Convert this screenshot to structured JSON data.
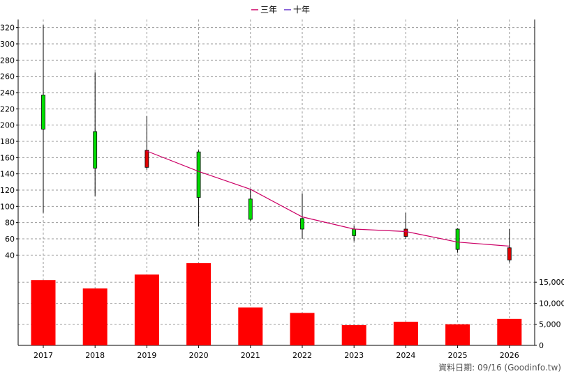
{
  "chart_data": {
    "type": "candlestick+line+bar",
    "x": [
      "2017",
      "2018",
      "2019",
      "2020",
      "2021",
      "2022",
      "2023",
      "2024",
      "2025",
      "2026"
    ],
    "legend": {
      "placement": "top-center",
      "items": [
        {
          "label": "三年",
          "color": "#cc0066"
        },
        {
          "label": "十年",
          "color": "#6633cc"
        }
      ]
    },
    "price_axis": {
      "side": "left",
      "ticks": [
        "40",
        "60",
        "80",
        "100",
        "120",
        "140",
        "160",
        "180",
        "200",
        "220",
        "240",
        "260",
        "280",
        "300",
        "320"
      ],
      "ylim": [
        30,
        330
      ],
      "grid": true
    },
    "volume_axis": {
      "side": "right",
      "ticks": [
        "0",
        "5,000",
        "10,000",
        "15,000"
      ],
      "ylim": [
        0,
        19500
      ]
    },
    "candles": [
      {
        "year": "2017",
        "open": 195,
        "close": 237,
        "high": 323,
        "low": 92
      },
      {
        "year": "2018",
        "open": 147,
        "close": 192,
        "high": 265,
        "low": 113
      },
      {
        "year": "2019",
        "open": 169,
        "close": 148,
        "high": 211,
        "low": 145
      },
      {
        "year": "2020",
        "open": 111,
        "close": 167,
        "high": 169,
        "low": 75
      },
      {
        "year": "2021",
        "open": 84,
        "close": 109,
        "high": 121,
        "low": 82
      },
      {
        "year": "2022",
        "open": 72,
        "close": 85,
        "high": 116,
        "low": 60
      },
      {
        "year": "2023",
        "open": 64,
        "close": 72,
        "high": 76,
        "low": 57
      },
      {
        "year": "2024",
        "open": 72,
        "close": 63,
        "high": 92,
        "low": 60
      },
      {
        "year": "2025",
        "open": 47,
        "close": 72,
        "high": 73,
        "low": 43
      },
      {
        "year": "2026",
        "open": 49,
        "close": 34,
        "high": 72,
        "low": 31
      }
    ],
    "colors": {
      "up": "#00dd00",
      "down": "#dd0000",
      "wick": "#000000",
      "volume": "#ff0000",
      "grid": "#999999",
      "three_year_line": "#cc0066"
    },
    "series": [
      {
        "name": "三年",
        "x": [
          "2019",
          "2020",
          "2021",
          "2022",
          "2023",
          "2024",
          "2025",
          "2026"
        ],
        "values": [
          168,
          143,
          121,
          87,
          72,
          69,
          56,
          51
        ]
      }
    ],
    "volume": {
      "values": [
        15500,
        13500,
        16800,
        19500,
        9000,
        7700,
        4800,
        5600,
        5000,
        6300
      ]
    }
  },
  "source_text": "資料日期: 09/16  (Goodinfo.tw)"
}
